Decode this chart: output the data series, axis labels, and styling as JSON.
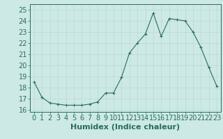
{
  "x": [
    0,
    1,
    2,
    3,
    4,
    5,
    6,
    7,
    8,
    9,
    10,
    11,
    12,
    13,
    14,
    15,
    16,
    17,
    18,
    19,
    20,
    21,
    22,
    23
  ],
  "y": [
    18.5,
    17.1,
    16.6,
    16.5,
    16.4,
    16.4,
    16.4,
    16.5,
    16.7,
    17.5,
    17.5,
    18.9,
    21.1,
    22.0,
    22.8,
    24.7,
    22.6,
    24.2,
    24.1,
    24.0,
    23.0,
    21.6,
    19.8,
    18.1
  ],
  "xlabel": "Humidex (Indice chaleur)",
  "xlim": [
    -0.5,
    23.5
  ],
  "ylim": [
    15.8,
    25.5
  ],
  "yticks": [
    16,
    17,
    18,
    19,
    20,
    21,
    22,
    23,
    24,
    25
  ],
  "xtick_labels": [
    "0",
    "1",
    "2",
    "3",
    "4",
    "5",
    "6",
    "7",
    "8",
    "9",
    "10",
    "11",
    "12",
    "13",
    "14",
    "15",
    "16",
    "17",
    "18",
    "19",
    "20",
    "21",
    "22",
    "23"
  ],
  "line_color": "#2a6b5e",
  "marker": "+",
  "bg_color": "#cce9e5",
  "grid_color": "#b8d8d4",
  "tick_label_color": "#2a6b5e",
  "xlabel_color": "#2a6b5e",
  "font_size": 7.0,
  "xlabel_fontsize": 8.0
}
